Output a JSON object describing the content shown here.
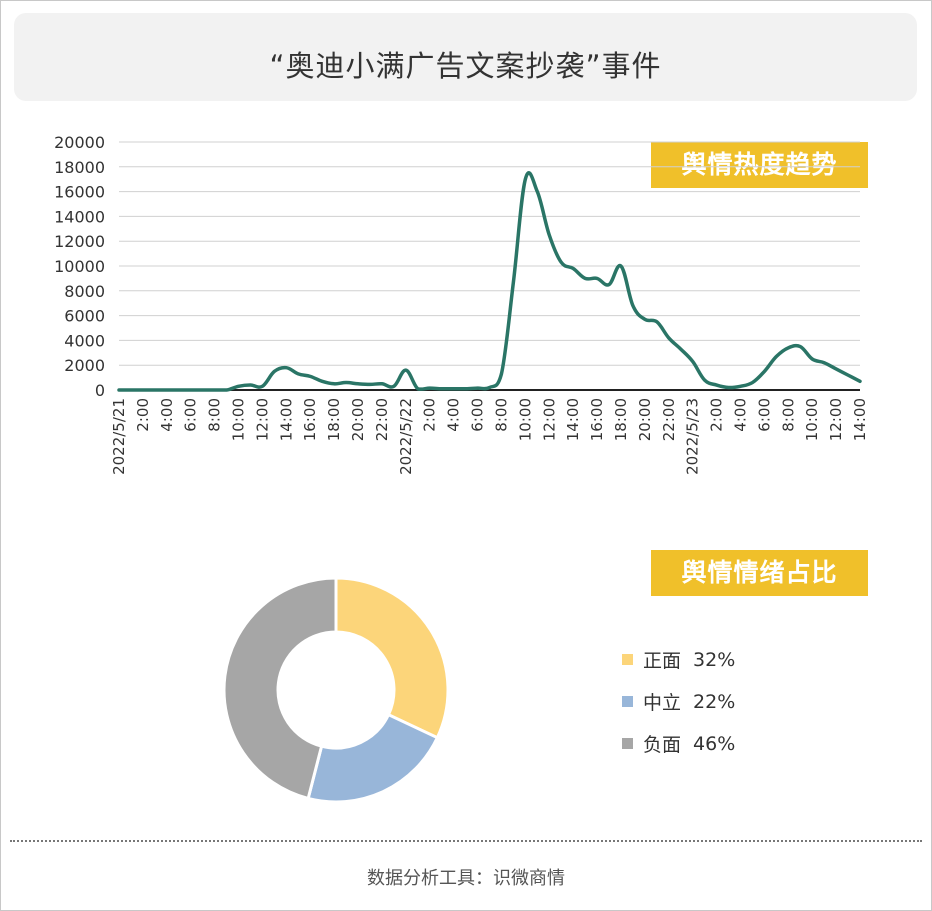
{
  "title": "“奥迪小满广告文案抄袭”事件",
  "trend_badge": "舆情热度趋势",
  "emotion_badge": "舆情情绪占比",
  "footer": "数据分析工具：识微商情",
  "colors": {
    "line": "#2a7566",
    "badge": "#f0c02a",
    "positive": "#fcd57a",
    "neutral": "#98b6d9",
    "negative": "#a6a6a6"
  },
  "chart_data": [
    {
      "type": "line",
      "title": "舆情热度趋势",
      "xlabel": "",
      "ylabel": "",
      "ylim": [
        0,
        20000
      ],
      "yticks": [
        "0",
        "2000",
        "4000",
        "6000",
        "8000",
        "10000",
        "12000",
        "14000",
        "16000",
        "18000",
        "20000"
      ],
      "grid": true,
      "xtick_labels": [
        "2022/5/21",
        "2:00",
        "4:00",
        "6:00",
        "8:00",
        "10:00",
        "12:00",
        "14:00",
        "16:00",
        "18:00",
        "20:00",
        "22:00",
        "2022/5/22",
        "2:00",
        "4:00",
        "6:00",
        "8:00",
        "10:00",
        "12:00",
        "14:00",
        "16:00",
        "18:00",
        "20:00",
        "22:00",
        "2022/5/23",
        "2:00",
        "4:00",
        "6:00",
        "8:00",
        "10:00",
        "12:00",
        "14:00"
      ],
      "series": [
        {
          "values": [
            0,
            0,
            0,
            0,
            0,
            0,
            0,
            0,
            0,
            0,
            300,
            400,
            300,
            1500,
            1800,
            1300,
            1100,
            700,
            500,
            600,
            500,
            450,
            500,
            300,
            1600,
            100,
            150,
            100,
            100,
            100,
            150,
            200,
            1300,
            8700,
            17000,
            16000,
            12500,
            10300,
            9800,
            9000,
            9000,
            8500,
            10000,
            6800,
            5700,
            5500,
            4200,
            3300,
            2300,
            800,
            400,
            200,
            300,
            600,
            1500,
            2700,
            3400,
            3500,
            2500,
            2200,
            1700,
            1200,
            700
          ]
        }
      ]
    },
    {
      "type": "pie",
      "title": "舆情情绪占比",
      "labels": [
        "正面",
        "中立",
        "负面"
      ],
      "values": [
        32,
        22,
        46
      ]
    }
  ]
}
